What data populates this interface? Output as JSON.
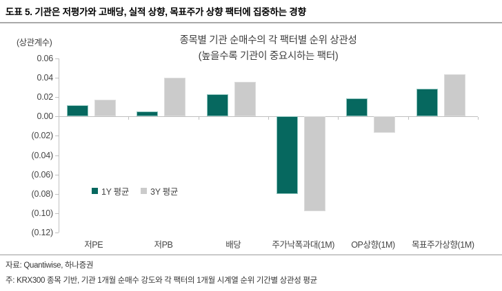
{
  "header": {
    "title": "도표 5. 기관은 저평가와 고배당, 실적 상향, 목표주가 상향 팩터에 집중하는 경향"
  },
  "footer": {
    "source": "자료: Quantiwise, 하나증권",
    "note": "주: KRX300 종목 기반, 기관 1개월 순매수 강도와 각 팩터의 1개월 시계열 순위 기간별 상관성 평균"
  },
  "chart_data": {
    "type": "bar",
    "title": "종목별 기관 순매수의 각 팩터별 순위 상관성",
    "subtitle": "(높을수록 기관이 중요시하는 팩터)",
    "y_unit": "(상관계수)",
    "categories": [
      "저PE",
      "저PB",
      "배당",
      "주가낙폭과대(1M)",
      "OP상향(1M)",
      "목표주가상향(1M)"
    ],
    "series": [
      {
        "name": "1Y 평균",
        "color": "#06685F",
        "border": "#8FC6BF",
        "values": [
          0.012,
          0.005,
          0.023,
          -0.08,
          0.019,
          0.029
        ]
      },
      {
        "name": "3Y 평균",
        "color": "#CBCBCB",
        "border": "#DCDCDC",
        "values": [
          0.017,
          0.04,
          0.036,
          -0.098,
          -0.017,
          0.044
        ]
      }
    ],
    "ylim": [
      -0.12,
      0.06
    ],
    "yticks": [
      {
        "label": "0.06",
        "value": 0.06
      },
      {
        "label": "0.04",
        "value": 0.04
      },
      {
        "label": "0.02",
        "value": 0.02
      },
      {
        "label": "0.00",
        "value": 0.0
      },
      {
        "label": "(0.02)",
        "value": -0.02
      },
      {
        "label": "(0.04)",
        "value": -0.04
      },
      {
        "label": "(0.06)",
        "value": -0.06
      },
      {
        "label": "(0.08)",
        "value": -0.08
      },
      {
        "label": "(0.10)",
        "value": -0.1
      },
      {
        "label": "(0.12)",
        "value": -0.12
      }
    ],
    "grid": false,
    "legend_position": "inside-left"
  }
}
